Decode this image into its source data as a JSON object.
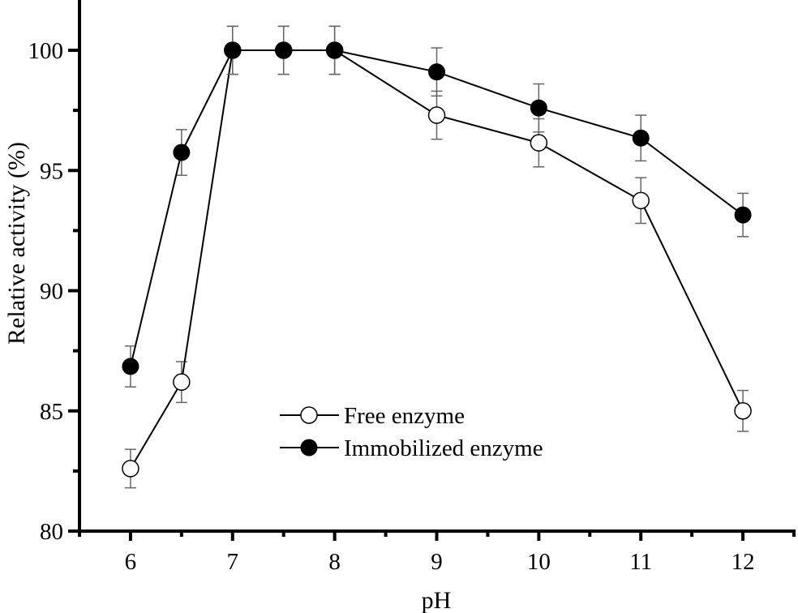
{
  "chart_data": {
    "type": "line",
    "title": "",
    "xlabel": "pH",
    "ylabel": "Relative activity (%)",
    "xlim": [
      5.5,
      12.5
    ],
    "ylim": [
      80,
      102.5
    ],
    "x_ticks": [
      6,
      7,
      8,
      9,
      10,
      11,
      12
    ],
    "x_minor_ticks": [
      5.5,
      6.5,
      7.5,
      8.5,
      9.5,
      10.5,
      11.5,
      12.5
    ],
    "y_ticks": [
      80,
      85,
      90,
      95,
      100
    ],
    "y_minor_ticks": [
      82.5,
      87.5,
      92.5,
      97.5
    ],
    "grid": false,
    "legend_position": "lower-center",
    "x": [
      6,
      6.5,
      7,
      7.5,
      8,
      9,
      10,
      11,
      12
    ],
    "series": [
      {
        "name": "Free enzyme",
        "marker": "open-circle",
        "values": [
          82.6,
          86.2,
          100,
          100,
          100,
          97.3,
          96.15,
          93.75,
          85.0
        ],
        "errors": [
          0.8,
          0.85,
          1.0,
          1.0,
          1.0,
          1.0,
          1.0,
          0.95,
          0.85
        ]
      },
      {
        "name": "Immobilized enzyme",
        "marker": "filled-circle",
        "values": [
          86.85,
          95.75,
          100,
          100,
          100,
          99.1,
          97.6,
          96.35,
          93.15
        ],
        "errors": [
          0.85,
          0.95,
          1.0,
          1.0,
          1.0,
          1.0,
          1.0,
          0.95,
          0.9
        ]
      }
    ]
  },
  "labels": {
    "x_axis": "pH",
    "y_axis": "Relative activity (%)",
    "legend_free": "Free enzyme",
    "legend_immobilized": "Immobilized enzyme"
  }
}
